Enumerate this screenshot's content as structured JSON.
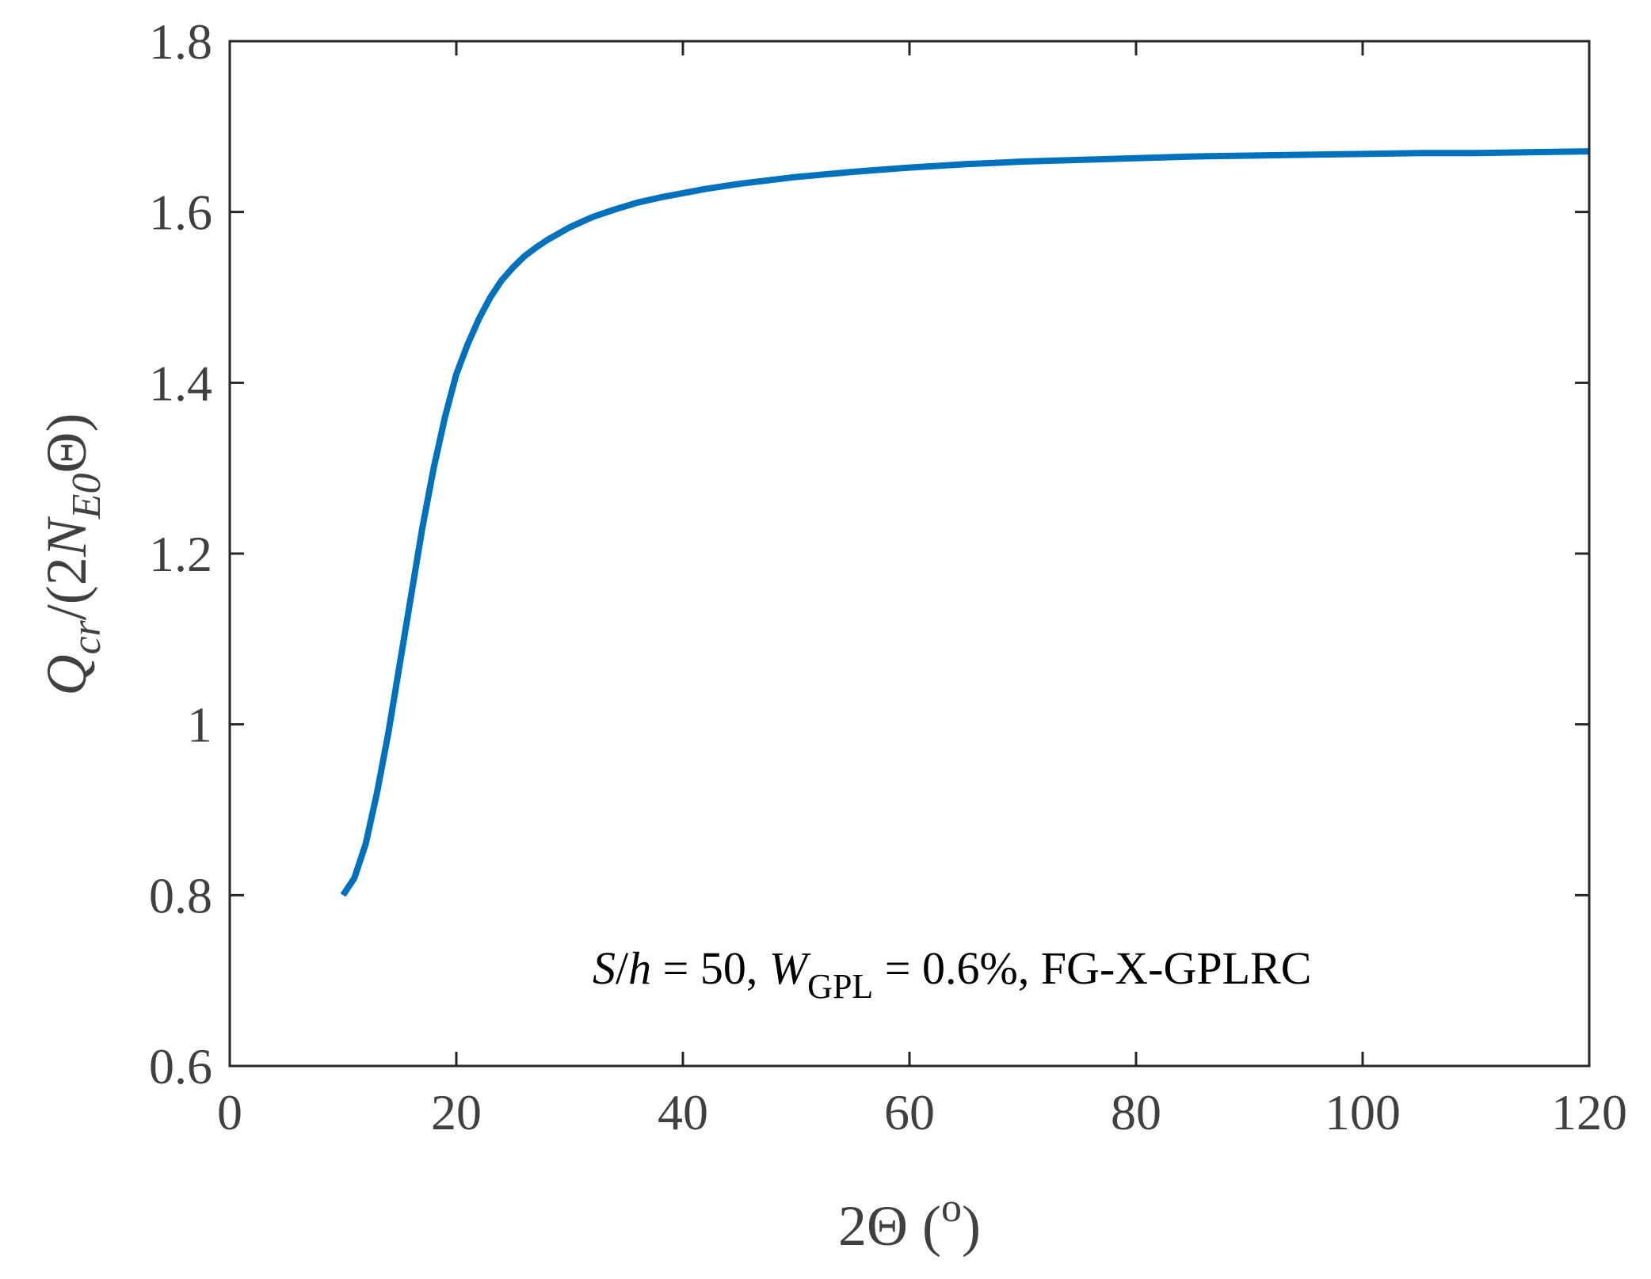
{
  "chart_data": {
    "type": "line",
    "title": "",
    "xlabel": {
      "main": "2Θ (",
      "sup": "o",
      "close": ")"
    },
    "ylabel": {
      "q": "Q",
      "q_sub": "cr",
      "mid": "/(2",
      "n": "N",
      "n_sub": "E0",
      "theta": "Θ",
      "close": ")"
    },
    "xlim": [
      0,
      120
    ],
    "ylim": [
      0.6,
      1.8
    ],
    "xticks": [
      0,
      20,
      40,
      60,
      80,
      100,
      120
    ],
    "xtick_labels": [
      "0",
      "20",
      "40",
      "60",
      "80",
      "100",
      "120"
    ],
    "yticks": [
      0.6,
      0.8,
      1.0,
      1.2,
      1.4,
      1.6,
      1.8
    ],
    "ytick_labels": [
      "0.6",
      "0.8",
      "1",
      "1.2",
      "1.4",
      "1.6",
      "1.8"
    ],
    "grid": false,
    "series": [
      {
        "color": "#0072BD",
        "x": [
          10,
          11,
          12,
          13,
          14,
          15,
          16,
          17,
          18,
          19,
          20,
          21,
          22,
          23,
          24,
          25,
          26,
          27,
          28,
          30,
          32,
          34,
          36,
          38,
          40,
          42,
          45,
          50,
          55,
          60,
          65,
          70,
          75,
          80,
          85,
          90,
          95,
          100,
          105,
          110,
          115,
          120
        ],
        "y": [
          0.8,
          0.82,
          0.86,
          0.92,
          0.99,
          1.07,
          1.15,
          1.23,
          1.3,
          1.36,
          1.41,
          1.445,
          1.475,
          1.5,
          1.52,
          1.535,
          1.548,
          1.558,
          1.567,
          1.582,
          1.594,
          1.603,
          1.611,
          1.617,
          1.622,
          1.627,
          1.633,
          1.641,
          1.647,
          1.652,
          1.656,
          1.659,
          1.661,
          1.663,
          1.665,
          1.666,
          1.667,
          1.668,
          1.669,
          1.669,
          1.67,
          1.671
        ]
      }
    ],
    "annotation": {
      "s": "S",
      "slash": "/",
      "h": "h",
      "eq1": " = 50, ",
      "w": "W",
      "w_sub": "GPL",
      "rest": " = 0.6%, FG-X-GPLRC"
    }
  }
}
